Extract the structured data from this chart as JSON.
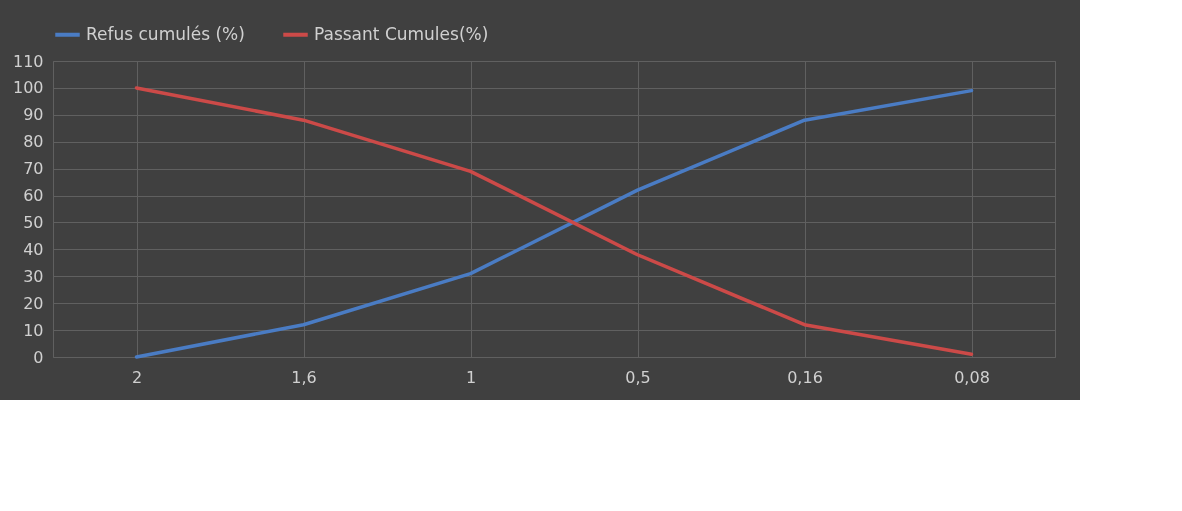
{
  "chart_data": {
    "type": "line",
    "categories": [
      "2",
      "1,6",
      "1",
      "0,5",
      "0,16",
      "0,08"
    ],
    "series": [
      {
        "name": "Refus cumulés (%)",
        "color": "#4a7cc4",
        "values": [
          0,
          12,
          31,
          62,
          88,
          99
        ]
      },
      {
        "name": "Passant Cumules(%)",
        "color": "#cc4a48",
        "values": [
          100,
          88,
          69,
          38,
          12,
          1
        ]
      }
    ],
    "ylim": [
      0,
      110
    ],
    "yticks": [
      0,
      10,
      20,
      30,
      40,
      50,
      60,
      70,
      80,
      90,
      100,
      110
    ],
    "grid": true,
    "legend": "top",
    "marker": "none",
    "line_style": "solid"
  }
}
